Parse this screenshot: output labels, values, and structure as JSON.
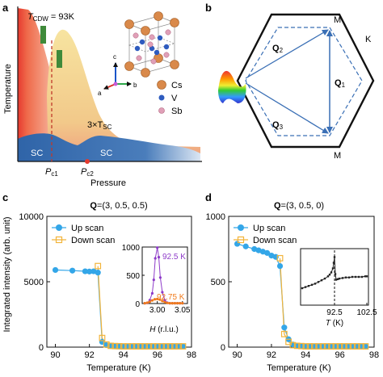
{
  "panels": {
    "a": {
      "letter": "a",
      "tcdw_prefix": "T",
      "tcdw_sub": "CDW",
      "tcdw_value": " = 93K",
      "ylabel": "Temperature",
      "xlabel": "Pressure",
      "sc_label": "SC",
      "three_tsc": "3×T",
      "three_tsc_sub": "SC",
      "pc1": "P",
      "pc1_sub": "c1",
      "pc2": "P",
      "pc2_sub": "c2",
      "axis_c": "c",
      "axis_a": "a",
      "axis_b": "b",
      "legend": [
        {
          "label": "Cs",
          "color": "#d9894a"
        },
        {
          "label": "V",
          "color": "#2e5bbf"
        },
        {
          "label": "Sb",
          "color": "#e0a0b8"
        }
      ]
    },
    "b": {
      "letter": "b",
      "M_top": "M",
      "K": "K",
      "M_bottom": "M",
      "Q1": "Q",
      "Q1_sub": "1",
      "Q2": "Q",
      "Q2_sub": "2",
      "Q3": "Q",
      "Q3_sub": "3"
    },
    "c": {
      "letter": "c",
      "title_q": "Q",
      "title_rest": "=(3, 0.5, 0.5)",
      "ylabel": "Integrated intensity (arb. unit)",
      "xlabel": "Temperature (K)",
      "legend_up": "Up scan",
      "legend_down": "Down scan",
      "inset_label1": "92.5 K",
      "inset_label2": "92.75 K",
      "inset_xlabel_var": "H",
      "inset_xlabel_unit": " (r.l.u.)"
    },
    "d": {
      "letter": "d",
      "title_q": "Q",
      "title_rest": "=(3, 0.5, 0)",
      "xlabel": "Temperature (K)",
      "legend_up": "Up scan",
      "legend_down": "Down scan",
      "inset_xlabel_var": "T",
      "inset_xlabel_unit": " (K)"
    }
  },
  "colors": {
    "up": "#33a6e8",
    "down": "#f2b43a",
    "inset_purple": "#8e3bc9",
    "inset_orange": "#f07a1a",
    "sc_blue": "#2f64a8",
    "cdw_red": "#e53a2e",
    "q_arrow": "#3a6fb5"
  },
  "chart_data": [
    {
      "type": "scatter",
      "panel": "c",
      "title": "Q=(3, 0.5, 0.5)",
      "xlabel": "Temperature (K)",
      "ylabel": "Integrated intensity (arb. unit)",
      "xlim": [
        89.5,
        98
      ],
      "ylim": [
        0,
        10000
      ],
      "xticks": [
        90,
        92,
        94,
        96,
        98
      ],
      "yticks": [
        0,
        5000,
        10000
      ],
      "legend": "top-left",
      "series": [
        {
          "name": "Up scan",
          "marker": "circle",
          "x": [
            90,
            91,
            91.75,
            92,
            92.25,
            92.5,
            92.75,
            93,
            93.25,
            93.5,
            93.75,
            94,
            94.25,
            94.5,
            94.75,
            95,
            95.25,
            95.5,
            95.75,
            96,
            96.25,
            96.5,
            96.75,
            97,
            97.25,
            97.5
          ],
          "y": [
            5900,
            5850,
            5800,
            5780,
            5800,
            5700,
            400,
            150,
            80,
            60,
            50,
            50,
            50,
            50,
            50,
            50,
            50,
            50,
            50,
            50,
            50,
            50,
            50,
            50,
            50,
            50
          ]
        },
        {
          "name": "Down scan",
          "marker": "square",
          "x": [
            92.5,
            92.75,
            93,
            93.25,
            93.5,
            93.75,
            94,
            94.25,
            94.5,
            94.75,
            95,
            95.25,
            95.5,
            95.75,
            96,
            96.25,
            96.5,
            96.75,
            97,
            97.25,
            97.5
          ],
          "y": [
            6200,
            700,
            200,
            100,
            80,
            70,
            60,
            60,
            60,
            60,
            60,
            60,
            60,
            60,
            60,
            60,
            60,
            60,
            60,
            60,
            60
          ]
        }
      ],
      "inset": {
        "xlim": [
          2.97,
          3.06
        ],
        "ylim": [
          0,
          1000
        ],
        "xticks": [
          3.0,
          3.05
        ],
        "yticks": [
          0,
          500,
          1000
        ],
        "xlabel": "H (r.l.u.)",
        "series": [
          {
            "name": "92.5 K",
            "x": [
              2.975,
              2.98,
              2.985,
              2.99,
              2.993,
              2.996,
              3.0,
              3.003,
              3.006,
              3.01,
              3.015,
              3.02,
              3.025,
              3.03,
              3.035,
              3.04,
              3.045,
              3.05
            ],
            "y": [
              5,
              10,
              60,
              180,
              420,
              800,
              990,
              820,
              460,
              200,
              60,
              15,
              5,
              5,
              5,
              5,
              5,
              5
            ]
          },
          {
            "name": "92.75 K",
            "x": [
              2.975,
              2.98,
              2.985,
              2.99,
              2.995,
              3.0,
              3.005,
              3.01,
              3.015,
              3.02,
              3.025,
              3.03,
              3.035,
              3.04,
              3.045,
              3.05
            ],
            "y": [
              5,
              15,
              30,
              55,
              75,
              80,
              70,
              45,
              25,
              10,
              5,
              5,
              5,
              5,
              5,
              5
            ]
          }
        ]
      }
    },
    {
      "type": "scatter",
      "panel": "d",
      "title": "Q=(3, 0.5, 0)",
      "xlabel": "Temperature (K)",
      "ylabel": "",
      "xlim": [
        89.5,
        98
      ],
      "ylim": [
        0,
        1000
      ],
      "xticks": [
        90,
        92,
        94,
        96,
        98
      ],
      "yticks": [
        0,
        500,
        1000
      ],
      "legend": "top-left",
      "series": [
        {
          "name": "Up scan",
          "marker": "circle",
          "x": [
            90,
            90.5,
            91,
            91.25,
            91.5,
            91.75,
            92,
            92.25,
            92.5,
            92.75,
            93,
            93.25,
            93.5,
            93.75,
            94,
            94.25,
            94.5,
            94.75,
            95,
            95.25,
            95.5,
            95.75,
            96,
            96.25,
            96.5,
            96.75,
            97,
            97.25,
            97.5
          ],
          "y": [
            790,
            770,
            750,
            740,
            730,
            720,
            700,
            690,
            620,
            150,
            60,
            20,
            10,
            8,
            5,
            5,
            5,
            5,
            5,
            5,
            5,
            5,
            5,
            5,
            5,
            5,
            5,
            5,
            5
          ]
        },
        {
          "name": "Down scan",
          "marker": "square",
          "x": [
            92.5,
            92.75,
            93,
            93.25,
            93.5,
            93.75,
            94,
            94.25,
            94.5,
            94.75,
            95,
            95.25,
            95.5,
            95.75,
            96,
            96.25,
            96.5,
            96.75,
            97,
            97.25,
            97.5
          ],
          "y": [
            680,
            100,
            40,
            15,
            10,
            8,
            6,
            6,
            6,
            6,
            6,
            6,
            6,
            6,
            6,
            6,
            6,
            6,
            6,
            6,
            6
          ]
        }
      ],
      "inset": {
        "xlim": [
          82,
          103
        ],
        "xticks": [
          92.5,
          102.5
        ],
        "xlabel": "T (K)",
        "dashed_line_x": 92.5,
        "x": [
          82.5,
          83.5,
          84.5,
          85.5,
          86.5,
          87.5,
          88.5,
          89.5,
          90.5,
          91.0,
          91.5,
          92.0,
          92.25,
          92.5,
          92.75,
          93.0,
          93.5,
          94.0,
          95.0,
          96.0,
          97.0,
          98.0,
          99.0,
          100.0,
          101.0,
          102.0,
          102.5
        ],
        "y": [
          0.3,
          0.32,
          0.34,
          0.36,
          0.38,
          0.41,
          0.44,
          0.47,
          0.51,
          0.54,
          0.58,
          0.65,
          0.75,
          0.85,
          0.55,
          0.45,
          0.46,
          0.47,
          0.48,
          0.49,
          0.49,
          0.5,
          0.5,
          0.5,
          0.5,
          0.51,
          0.51
        ]
      }
    }
  ]
}
